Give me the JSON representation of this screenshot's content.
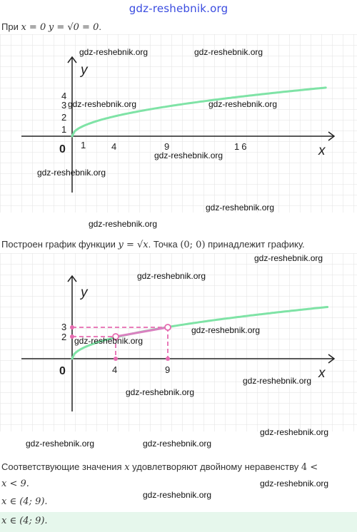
{
  "header": {
    "site": "gdz-reshebnik.org"
  },
  "intro": {
    "prefix": "При",
    "eq1": "x = 0",
    "eq2": "y = √0 = 0",
    "end": "."
  },
  "graph1": {
    "y_axis": "y",
    "x_axis": "x",
    "origin": "0",
    "y_ticks": [
      "1",
      "2",
      "3",
      "4"
    ],
    "x_ticks": [
      "1",
      "4",
      "9",
      "16"
    ]
  },
  "caption": {
    "prefix": "Построен график функции",
    "func": "y = √x",
    "middle": ". Точка",
    "point": "(0; 0)",
    "suffix": "принадлежит графику."
  },
  "graph2": {
    "y_axis": "y",
    "x_axis": "x",
    "origin": "0",
    "y_ticks": [
      "2",
      "3"
    ],
    "x_ticks": [
      "4",
      "9"
    ]
  },
  "conclusion": {
    "line1_prefix": "Соответствующие значения",
    "var": "x",
    "line1_mid": "удовлетворяют двойному неравенству",
    "ineq_start": "4 <",
    "line2": "x < 9.",
    "line3": "x ∈ (4; 9).",
    "answer": "x ∈ (4; 9)."
  },
  "watermarks": {
    "w1": "gdz-reshebnik.org",
    "w2": "gdz-reshebnik.org",
    "w3": "gdz-reshebnik.org",
    "w4": "gdz-reshebnik.org",
    "w5": "gdz-reshebnik.org",
    "w6": "gdz-reshebnik.org",
    "w7": "gdz-reshebnik.org",
    "w8": "gdz-reshebnik.org",
    "w9": "gdz-reshebnik.org",
    "w10": "gdz-reshebnik.org",
    "w11": "gdz-reshebnik.org",
    "w12": "gdz-reshebnik.org",
    "w13": "gdz-reshebnik.org",
    "w14": "gdz-reshebnik.org",
    "w15": "gdz-reshebnik.org",
    "w16": "gdz-reshebnik.org",
    "w17": "gdz-reshebnik.org"
  },
  "colors": {
    "curve": "#7fe3a6",
    "highlight": "#e66bb0",
    "grid": "#e2e2e2",
    "axis": "#222222",
    "answer_bg": "#e6f7ec"
  }
}
